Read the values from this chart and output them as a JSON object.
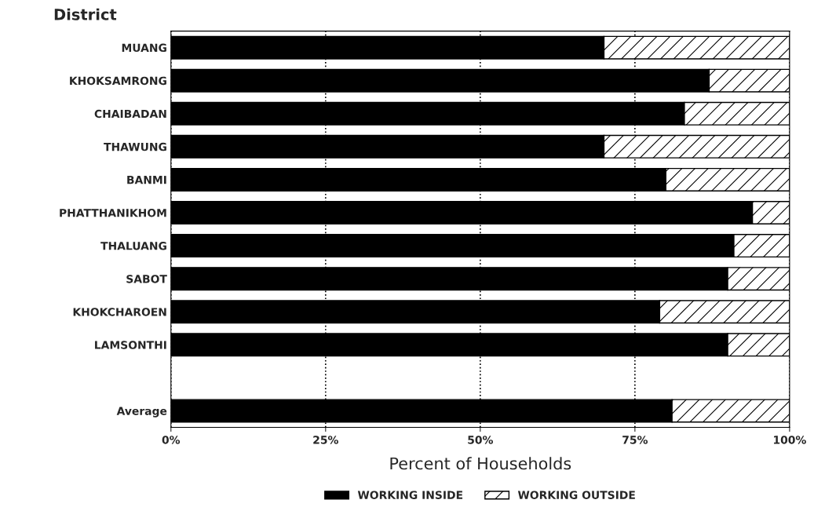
{
  "chart_data": {
    "type": "bar",
    "orientation": "horizontal",
    "stacked": true,
    "ylabel": "District",
    "xlabel": "Percent of Households",
    "categories": [
      "MUANG",
      "KHOKSAMRONG",
      "CHAIBADAN",
      "THAWUNG",
      "BANMI",
      "PHATTHANIKHOM",
      "THALUANG",
      "SABOT",
      "KHOKCHAROEN",
      "LAMSONTHI",
      null,
      "Average"
    ],
    "series": [
      {
        "name": "WORKING INSIDE",
        "color": "#000000",
        "values": [
          70,
          87,
          83,
          70,
          80,
          94,
          91,
          90,
          79,
          90,
          null,
          81
        ]
      },
      {
        "name": "WORKING OUTSIDE",
        "color": "#000000",
        "values": [
          30,
          13,
          17,
          30,
          20,
          6,
          9,
          10,
          21,
          10,
          null,
          19
        ]
      }
    ],
    "xlim": [
      0,
      100
    ],
    "xticks": [
      {
        "value": 0,
        "label": "0%"
      },
      {
        "value": 25,
        "label": "25%"
      },
      {
        "value": 50,
        "label": "50%"
      },
      {
        "value": 75,
        "label": "75%"
      },
      {
        "value": 100,
        "label": "100%"
      }
    ],
    "grid": "x",
    "legend": "bottom"
  }
}
